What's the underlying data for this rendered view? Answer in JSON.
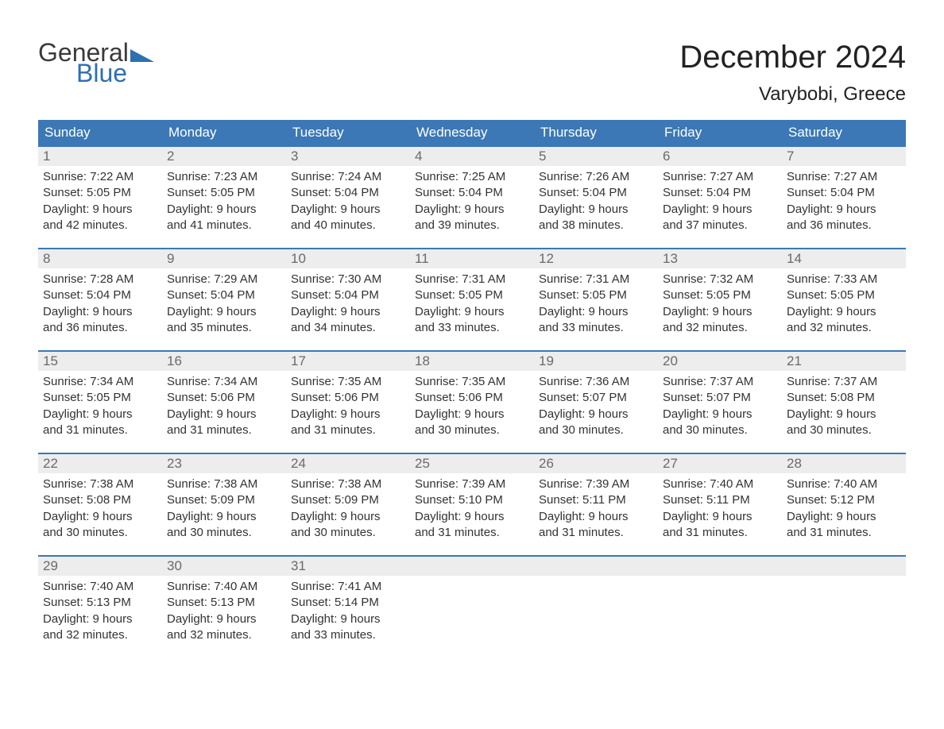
{
  "logo": {
    "text1": "General",
    "text2": "Blue",
    "triangle_color": "#2f6fb0"
  },
  "title": "December 2024",
  "location": "Varybobi, Greece",
  "colors": {
    "header_bg": "#3b78b5",
    "header_text": "#ffffff",
    "daynum_bg": "#ededed",
    "daynum_text": "#6a6a6a",
    "border": "#3b78b5",
    "body_text": "#333333"
  },
  "weekdays": [
    "Sunday",
    "Monday",
    "Tuesday",
    "Wednesday",
    "Thursday",
    "Friday",
    "Saturday"
  ],
  "weeks": [
    [
      {
        "n": "1",
        "sr": "7:22 AM",
        "ss": "5:05 PM",
        "d1": "Daylight: 9 hours",
        "d2": "and 42 minutes."
      },
      {
        "n": "2",
        "sr": "7:23 AM",
        "ss": "5:05 PM",
        "d1": "Daylight: 9 hours",
        "d2": "and 41 minutes."
      },
      {
        "n": "3",
        "sr": "7:24 AM",
        "ss": "5:04 PM",
        "d1": "Daylight: 9 hours",
        "d2": "and 40 minutes."
      },
      {
        "n": "4",
        "sr": "7:25 AM",
        "ss": "5:04 PM",
        "d1": "Daylight: 9 hours",
        "d2": "and 39 minutes."
      },
      {
        "n": "5",
        "sr": "7:26 AM",
        "ss": "5:04 PM",
        "d1": "Daylight: 9 hours",
        "d2": "and 38 minutes."
      },
      {
        "n": "6",
        "sr": "7:27 AM",
        "ss": "5:04 PM",
        "d1": "Daylight: 9 hours",
        "d2": "and 37 minutes."
      },
      {
        "n": "7",
        "sr": "7:27 AM",
        "ss": "5:04 PM",
        "d1": "Daylight: 9 hours",
        "d2": "and 36 minutes."
      }
    ],
    [
      {
        "n": "8",
        "sr": "7:28 AM",
        "ss": "5:04 PM",
        "d1": "Daylight: 9 hours",
        "d2": "and 36 minutes."
      },
      {
        "n": "9",
        "sr": "7:29 AM",
        "ss": "5:04 PM",
        "d1": "Daylight: 9 hours",
        "d2": "and 35 minutes."
      },
      {
        "n": "10",
        "sr": "7:30 AM",
        "ss": "5:04 PM",
        "d1": "Daylight: 9 hours",
        "d2": "and 34 minutes."
      },
      {
        "n": "11",
        "sr": "7:31 AM",
        "ss": "5:05 PM",
        "d1": "Daylight: 9 hours",
        "d2": "and 33 minutes."
      },
      {
        "n": "12",
        "sr": "7:31 AM",
        "ss": "5:05 PM",
        "d1": "Daylight: 9 hours",
        "d2": "and 33 minutes."
      },
      {
        "n": "13",
        "sr": "7:32 AM",
        "ss": "5:05 PM",
        "d1": "Daylight: 9 hours",
        "d2": "and 32 minutes."
      },
      {
        "n": "14",
        "sr": "7:33 AM",
        "ss": "5:05 PM",
        "d1": "Daylight: 9 hours",
        "d2": "and 32 minutes."
      }
    ],
    [
      {
        "n": "15",
        "sr": "7:34 AM",
        "ss": "5:05 PM",
        "d1": "Daylight: 9 hours",
        "d2": "and 31 minutes."
      },
      {
        "n": "16",
        "sr": "7:34 AM",
        "ss": "5:06 PM",
        "d1": "Daylight: 9 hours",
        "d2": "and 31 minutes."
      },
      {
        "n": "17",
        "sr": "7:35 AM",
        "ss": "5:06 PM",
        "d1": "Daylight: 9 hours",
        "d2": "and 31 minutes."
      },
      {
        "n": "18",
        "sr": "7:35 AM",
        "ss": "5:06 PM",
        "d1": "Daylight: 9 hours",
        "d2": "and 30 minutes."
      },
      {
        "n": "19",
        "sr": "7:36 AM",
        "ss": "5:07 PM",
        "d1": "Daylight: 9 hours",
        "d2": "and 30 minutes."
      },
      {
        "n": "20",
        "sr": "7:37 AM",
        "ss": "5:07 PM",
        "d1": "Daylight: 9 hours",
        "d2": "and 30 minutes."
      },
      {
        "n": "21",
        "sr": "7:37 AM",
        "ss": "5:08 PM",
        "d1": "Daylight: 9 hours",
        "d2": "and 30 minutes."
      }
    ],
    [
      {
        "n": "22",
        "sr": "7:38 AM",
        "ss": "5:08 PM",
        "d1": "Daylight: 9 hours",
        "d2": "and 30 minutes."
      },
      {
        "n": "23",
        "sr": "7:38 AM",
        "ss": "5:09 PM",
        "d1": "Daylight: 9 hours",
        "d2": "and 30 minutes."
      },
      {
        "n": "24",
        "sr": "7:38 AM",
        "ss": "5:09 PM",
        "d1": "Daylight: 9 hours",
        "d2": "and 30 minutes."
      },
      {
        "n": "25",
        "sr": "7:39 AM",
        "ss": "5:10 PM",
        "d1": "Daylight: 9 hours",
        "d2": "and 31 minutes."
      },
      {
        "n": "26",
        "sr": "7:39 AM",
        "ss": "5:11 PM",
        "d1": "Daylight: 9 hours",
        "d2": "and 31 minutes."
      },
      {
        "n": "27",
        "sr": "7:40 AM",
        "ss": "5:11 PM",
        "d1": "Daylight: 9 hours",
        "d2": "and 31 minutes."
      },
      {
        "n": "28",
        "sr": "7:40 AM",
        "ss": "5:12 PM",
        "d1": "Daylight: 9 hours",
        "d2": "and 31 minutes."
      }
    ],
    [
      {
        "n": "29",
        "sr": "7:40 AM",
        "ss": "5:13 PM",
        "d1": "Daylight: 9 hours",
        "d2": "and 32 minutes."
      },
      {
        "n": "30",
        "sr": "7:40 AM",
        "ss": "5:13 PM",
        "d1": "Daylight: 9 hours",
        "d2": "and 32 minutes."
      },
      {
        "n": "31",
        "sr": "7:41 AM",
        "ss": "5:14 PM",
        "d1": "Daylight: 9 hours",
        "d2": "and 33 minutes."
      },
      {
        "n": "",
        "sr": "",
        "ss": "",
        "d1": "",
        "d2": ""
      },
      {
        "n": "",
        "sr": "",
        "ss": "",
        "d1": "",
        "d2": ""
      },
      {
        "n": "",
        "sr": "",
        "ss": "",
        "d1": "",
        "d2": ""
      },
      {
        "n": "",
        "sr": "",
        "ss": "",
        "d1": "",
        "d2": ""
      }
    ]
  ],
  "labels": {
    "sunrise": "Sunrise: ",
    "sunset": "Sunset: "
  }
}
